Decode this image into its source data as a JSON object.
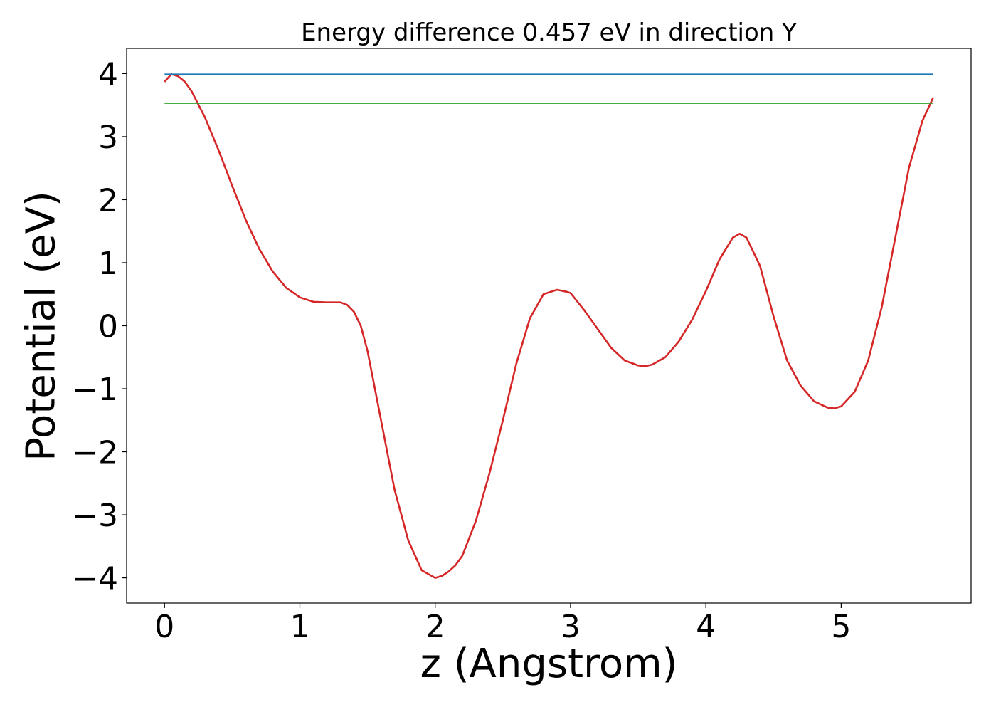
{
  "chart_data": {
    "type": "line",
    "title": "Energy difference 0.457 eV in direction Y",
    "xlabel": "z (Angstrom)",
    "ylabel": "Potential (eV)",
    "xlim": [
      -0.28,
      5.96
    ],
    "ylim": [
      -4.4,
      4.4
    ],
    "xticks": [
      0,
      1,
      2,
      3,
      4,
      5
    ],
    "yticks": [
      -4,
      -3,
      -2,
      -1,
      0,
      1,
      2,
      3,
      4
    ],
    "xtick_labels": [
      "0",
      "1",
      "2",
      "3",
      "4",
      "5"
    ],
    "ytick_labels": [
      "−4",
      "−3",
      "−2",
      "−1",
      "0",
      "1",
      "2",
      "3",
      "4"
    ],
    "grid": false,
    "series": [
      {
        "color": "#d62728",
        "x": [
          0.0,
          0.05,
          0.1,
          0.15,
          0.2,
          0.3,
          0.4,
          0.5,
          0.6,
          0.7,
          0.8,
          0.9,
          1.0,
          1.1,
          1.2,
          1.3,
          1.35,
          1.4,
          1.45,
          1.5,
          1.6,
          1.7,
          1.8,
          1.9,
          2.0,
          2.05,
          2.1,
          2.15,
          2.2,
          2.3,
          2.4,
          2.5,
          2.6,
          2.7,
          2.8,
          2.9,
          2.97,
          3.0,
          3.1,
          3.2,
          3.3,
          3.4,
          3.5,
          3.55,
          3.6,
          3.7,
          3.8,
          3.9,
          4.0,
          4.1,
          4.2,
          4.25,
          4.3,
          4.4,
          4.5,
          4.6,
          4.7,
          4.8,
          4.9,
          4.95,
          5.0,
          5.1,
          5.2,
          5.3,
          5.4,
          5.5,
          5.6,
          5.68
        ],
        "y": [
          3.87,
          3.99,
          3.96,
          3.87,
          3.72,
          3.3,
          2.78,
          2.22,
          1.68,
          1.22,
          0.86,
          0.6,
          0.45,
          0.38,
          0.37,
          0.37,
          0.33,
          0.22,
          0.0,
          -0.4,
          -1.5,
          -2.6,
          -3.4,
          -3.88,
          -4.0,
          -3.97,
          -3.9,
          -3.8,
          -3.65,
          -3.1,
          -2.35,
          -1.5,
          -0.6,
          0.12,
          0.5,
          0.57,
          0.54,
          0.52,
          0.25,
          -0.05,
          -0.35,
          -0.55,
          -0.63,
          -0.64,
          -0.62,
          -0.5,
          -0.25,
          0.1,
          0.55,
          1.05,
          1.4,
          1.46,
          1.4,
          0.95,
          0.15,
          -0.55,
          -0.95,
          -1.2,
          -1.3,
          -1.31,
          -1.28,
          -1.05,
          -0.55,
          0.3,
          1.4,
          2.5,
          3.25,
          3.62
        ]
      },
      {
        "color": "#1f77b4",
        "x": [
          0.0,
          5.68
        ],
        "y": [
          3.99,
          3.99
        ]
      },
      {
        "color": "#2ca02c",
        "x": [
          0.0,
          5.68
        ],
        "y": [
          3.53,
          3.53
        ]
      }
    ]
  }
}
